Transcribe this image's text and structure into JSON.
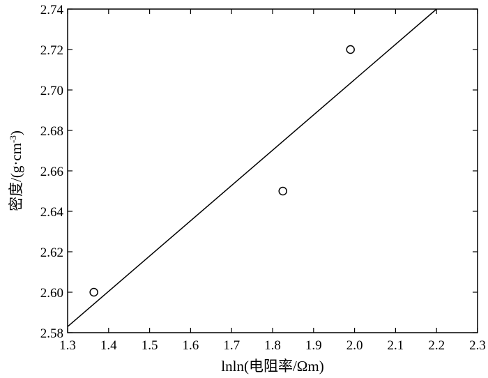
{
  "chart_data": {
    "type": "scatter",
    "title": "",
    "xlabel": "lnln(电阻率/Ωm)",
    "ylabel_main": "密度/(g·cm",
    "ylabel_sup": "-3",
    "ylabel_end": ")",
    "xlim": [
      1.3,
      2.3
    ],
    "ylim": [
      2.58,
      2.74
    ],
    "x_ticks": [
      "1.3",
      "1.4",
      "1.5",
      "1.6",
      "1.7",
      "1.8",
      "1.9",
      "2.0",
      "2.1",
      "2.2",
      "2.3"
    ],
    "y_ticks": [
      "2.58",
      "2.60",
      "2.62",
      "2.64",
      "2.66",
      "2.68",
      "2.70",
      "2.72",
      "2.74"
    ],
    "grid": false,
    "points": [
      {
        "x": 1.364,
        "y": 2.6
      },
      {
        "x": 1.825,
        "y": 2.65
      },
      {
        "x": 1.99,
        "y": 2.72
      }
    ],
    "fit_line": [
      {
        "x": 1.3,
        "y": 2.583
      },
      {
        "x": 2.2,
        "y": 2.74
      }
    ],
    "colors": {
      "line": "#000000",
      "marker_edge": "#000000",
      "marker_fill": "#ffffff"
    }
  }
}
